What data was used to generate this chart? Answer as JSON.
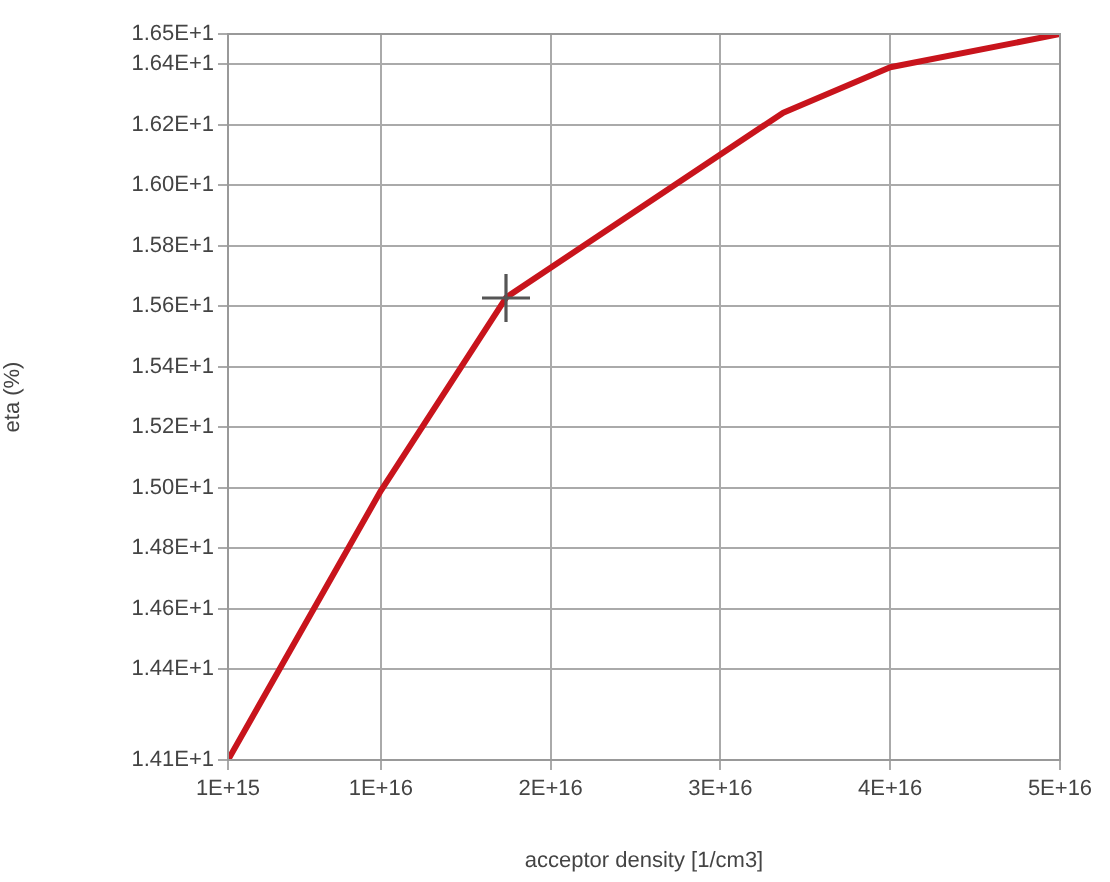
{
  "chart_data": {
    "type": "line",
    "xlabel": "acceptor density [1/cm3]",
    "ylabel": "eta (%)",
    "x": [
      1000000000000000.0,
      1e+16,
      1.74e+16,
      3.37e+16,
      4e+16,
      5e+16
    ],
    "series": [
      {
        "color": "#c8141c",
        "values": [
          14.1,
          14.99,
          15.63,
          16.24,
          16.39,
          16.5
        ]
      }
    ],
    "xlim": [
      1000000000000000.0,
      5e+16
    ],
    "xticks": [
      {
        "value": 1000000000000000.0,
        "label": "1E+15"
      },
      {
        "value": 1e+16,
        "label": "1E+16"
      },
      {
        "value": 2e+16,
        "label": "2E+16"
      },
      {
        "value": 3e+16,
        "label": "3E+16"
      },
      {
        "value": 4e+16,
        "label": "4E+16"
      },
      {
        "value": 5e+16,
        "label": "5E+16"
      }
    ],
    "ylim": [
      14.1,
      16.5
    ],
    "yticks": [
      {
        "value": 14.1,
        "label": "1.41E+1"
      },
      {
        "value": 14.4,
        "label": "1.44E+1"
      },
      {
        "value": 14.6,
        "label": "1.46E+1"
      },
      {
        "value": 14.8,
        "label": "1.48E+1"
      },
      {
        "value": 15.0,
        "label": "1.50E+1"
      },
      {
        "value": 15.2,
        "label": "1.52E+1"
      },
      {
        "value": 15.4,
        "label": "1.54E+1"
      },
      {
        "value": 15.6,
        "label": "1.56E+1"
      },
      {
        "value": 15.8,
        "label": "1.58E+1"
      },
      {
        "value": 16.0,
        "label": "1.60E+1"
      },
      {
        "value": 16.2,
        "label": "1.62E+1"
      },
      {
        "value": 16.4,
        "label": "1.64E+1"
      },
      {
        "value": 16.5,
        "label": "1.65E+1"
      }
    ],
    "grid": true,
    "legend": false,
    "marker": "none",
    "line_style": "solid"
  }
}
